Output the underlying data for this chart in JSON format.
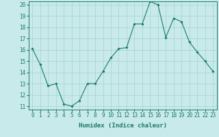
{
  "x": [
    0,
    1,
    2,
    3,
    4,
    5,
    6,
    7,
    8,
    9,
    10,
    11,
    12,
    13,
    14,
    15,
    16,
    17,
    18,
    19,
    20,
    21,
    22,
    23
  ],
  "y": [
    16.1,
    14.7,
    12.8,
    13.0,
    11.2,
    11.0,
    11.5,
    13.0,
    13.0,
    14.1,
    15.3,
    16.1,
    16.2,
    18.3,
    18.3,
    20.3,
    20.0,
    17.1,
    18.8,
    18.5,
    16.7,
    15.8,
    15.0,
    14.1
  ],
  "line_color": "#1a7a6a",
  "marker": "D",
  "marker_size": 1.8,
  "bg_color": "#c8eaea",
  "grid_color": "#a8d0d0",
  "xlabel": "Humidex (Indice chaleur)",
  "ylim": [
    11,
    20
  ],
  "xlim": [
    -0.5,
    23.5
  ],
  "yticks": [
    11,
    12,
    13,
    14,
    15,
    16,
    17,
    18,
    19,
    20
  ],
  "xticks": [
    0,
    1,
    2,
    3,
    4,
    5,
    6,
    7,
    8,
    9,
    10,
    11,
    12,
    13,
    14,
    15,
    16,
    17,
    18,
    19,
    20,
    21,
    22,
    23
  ],
  "xlabel_fontsize": 6.5,
  "tick_fontsize": 5.5,
  "linewidth": 0.8
}
